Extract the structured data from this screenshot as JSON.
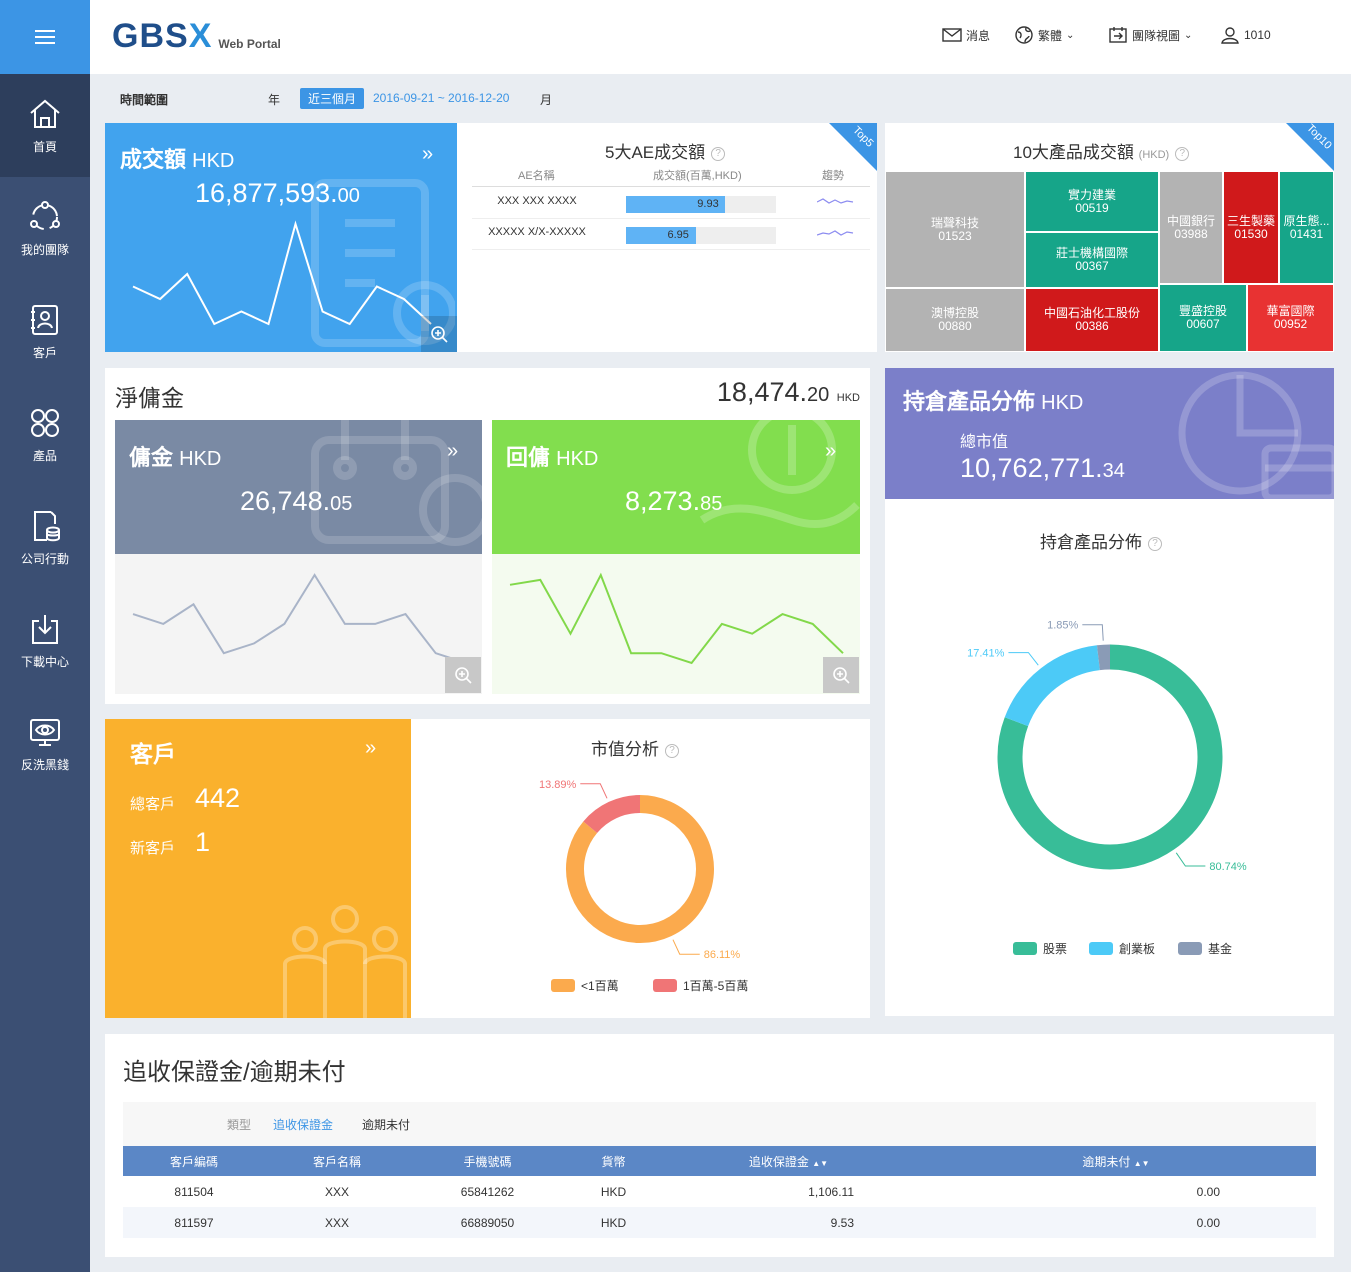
{
  "sidebar": {
    "items": [
      {
        "label": "首頁",
        "active": true,
        "icon": "home-icon"
      },
      {
        "label": "我的團隊",
        "active": false,
        "icon": "team-icon"
      },
      {
        "label": "客戶",
        "active": false,
        "icon": "client-icon"
      },
      {
        "label": "產品",
        "active": false,
        "icon": "product-icon"
      },
      {
        "label": "公司行動",
        "active": false,
        "icon": "corporate-action-icon"
      },
      {
        "label": "下載中心",
        "active": false,
        "icon": "download-icon"
      },
      {
        "label": "反洗黑錢",
        "active": false,
        "icon": "aml-eye-icon"
      }
    ]
  },
  "header": {
    "logo_main": "GBS",
    "logo_x": "X",
    "logo_sub": "Web Portal",
    "messages": "消息",
    "language": "繁體",
    "view": "團隊視圖",
    "user": "1010"
  },
  "filter": {
    "label": "時間範圍",
    "year": "年",
    "range": "近三個月",
    "dates": "2016-09-21 ~ 2016-12-20",
    "month": "月"
  },
  "turnover": {
    "title": "成交額",
    "unit": "HKD",
    "value_int": "16,877,593.",
    "value_dec": "00",
    "trend": [
      5,
      4,
      6,
      2,
      3,
      2,
      10,
      3,
      2,
      5,
      4,
      2
    ]
  },
  "top5": {
    "title": "5大AE成交額",
    "badge": "Top5",
    "columns": [
      "AE名稱",
      "成交額(百萬,HKD)",
      "趨勢"
    ],
    "max": 15,
    "rows": [
      {
        "name": "XXX XXX XXXX",
        "value": 9.93
      },
      {
        "name": "XXXXX X/X-XXXXX",
        "value": 6.95
      }
    ]
  },
  "top10": {
    "title": "10大產品成交額",
    "unit": "(HKD)",
    "badge": "Top10",
    "tiles": [
      {
        "name": "瑞聲科技",
        "code": "01523",
        "color": "#b3b3b3"
      },
      {
        "name": "澳博控股",
        "code": "00880",
        "color": "#b3b3b3"
      },
      {
        "name": "實力建業",
        "code": "00519",
        "color": "#16a589"
      },
      {
        "name": "莊士機構國際",
        "code": "00367",
        "color": "#16a589"
      },
      {
        "name": "中國石油化工股份",
        "code": "00386",
        "color": "#d0191b"
      },
      {
        "name": "中國銀行",
        "code": "03988",
        "color": "#b3b3b3"
      },
      {
        "name": "三生製藥",
        "code": "01530",
        "color": "#d0191b"
      },
      {
        "name": "原生態...",
        "code": "01431",
        "color": "#16a589"
      },
      {
        "name": "豐盛控股",
        "code": "00607",
        "color": "#16a589"
      },
      {
        "name": "華富國際",
        "code": "00952",
        "color": "#e83232"
      }
    ]
  },
  "net_commission": {
    "title": "淨傭金",
    "value_int": "18,474.",
    "value_dec": "20",
    "unit": "HKD",
    "commission": {
      "title": "傭金",
      "unit": "HKD",
      "value_int": "26,748.",
      "value_dec": "05",
      "trend": [
        6,
        5,
        7,
        2,
        3,
        5,
        10,
        5,
        5,
        6,
        2,
        1
      ]
    },
    "rebate": {
      "title": "回傭",
      "unit": "HKD",
      "value_int": "8,273.",
      "value_dec": "85",
      "trend": [
        8,
        8.5,
        3,
        9,
        1,
        1,
        0,
        4,
        3,
        5,
        4,
        1
      ]
    }
  },
  "holdings": {
    "title": "持倉產品分佈",
    "unit": "HKD",
    "mv_label": "總市值",
    "value_int": "10,762,771.",
    "value_dec": "34",
    "chart_title": "持倉產品分佈"
  },
  "clients": {
    "title": "客戶",
    "total_label": "總客戶",
    "total": "442",
    "new_label": "新客戶",
    "new": "1"
  },
  "mkt_value": {
    "title": "市值分析"
  },
  "margin": {
    "title": "追收保證金/逾期未付",
    "type_label": "類型",
    "tab_active": "追收保證金",
    "tab_other": "逾期未付",
    "columns": [
      "客戶編碼",
      "客戶名稱",
      "手機號碼",
      "貨幣",
      "追收保證金",
      "逾期未付"
    ],
    "rows": [
      [
        "811504",
        "XXX",
        "65841262",
        "HKD",
        "1,106.11",
        "0.00"
      ],
      [
        "811597",
        "XXX",
        "66889050",
        "HKD",
        "9.53",
        "0.00"
      ]
    ]
  },
  "colors": {
    "blue": "#41a3ee",
    "slate": "#7a8aa4",
    "green": "#82de4e",
    "orange": "#fab12d",
    "purple": "#7b7fc9",
    "teal": "#38bd98",
    "sky": "#4ccaf7",
    "gray_blue": "#8a9bb6"
  },
  "chart_data": [
    {
      "type": "pie",
      "title": "持倉產品分佈",
      "categories": [
        "股票",
        "創業板",
        "基金"
      ],
      "values": [
        80.74,
        17.41,
        1.85
      ],
      "labels": [
        "80.74%",
        "17.41%",
        "1.85%"
      ],
      "colors": [
        "#38bd98",
        "#4ccaf7",
        "#8a9bb6"
      ],
      "legend": "bottom"
    },
    {
      "type": "pie",
      "title": "市值分析",
      "categories": [
        "<1百萬",
        "1百萬-5百萬"
      ],
      "values": [
        86.11,
        13.89
      ],
      "labels": [
        "86.11%",
        "13.89%"
      ],
      "colors": [
        "#fbaa4d",
        "#f07576"
      ],
      "legend": "bottom"
    }
  ]
}
